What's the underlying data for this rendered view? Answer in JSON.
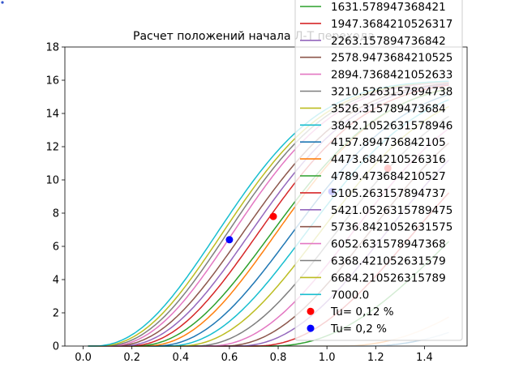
{
  "chart_data": {
    "type": "line",
    "title": "Расчет положений начала Л-Т перехода",
    "xlabel": "",
    "ylabel": "",
    "xlim": [
      -0.075,
      1.575
    ],
    "ylim": [
      0,
      18
    ],
    "xticks": [
      0.0,
      0.2,
      0.4,
      0.6,
      0.8,
      1.0,
      1.2,
      1.4
    ],
    "xtick_labels": [
      "0.0",
      "0.2",
      "0.4",
      "0.6",
      "0.8",
      "1.0",
      "1.2",
      "1.4"
    ],
    "yticks": [
      0,
      2,
      4,
      6,
      8,
      10,
      12,
      14,
      16,
      18
    ],
    "ytick_labels": [
      "0",
      "2",
      "4",
      "6",
      "8",
      "10",
      "12",
      "14",
      "16",
      "18"
    ],
    "grid": false,
    "legend_position": "top-right",
    "series": [
      {
        "name": "1631.578947368421",
        "color": "#2ca02c",
        "curve": {
          "x0": 1.02,
          "a": 1.0,
          "k": 6
        }
      },
      {
        "name": "1947.3684210526317",
        "color": "#d62728",
        "curve": {
          "x0": 0.95,
          "a": 1.0,
          "k": 7
        }
      },
      {
        "name": "2263.157894736842",
        "color": "#9467bd",
        "curve": {
          "x0": 0.88,
          "a": 1.0,
          "k": 7.5
        }
      },
      {
        "name": "2578.9473684210525",
        "color": "#8c564b",
        "curve": {
          "x0": 0.82,
          "a": 1.05,
          "k": 8
        }
      },
      {
        "name": "2894.7368421052633",
        "color": "#e377c2",
        "curve": {
          "x0": 0.76,
          "a": 1.1,
          "k": 8.5
        }
      },
      {
        "name": "3210.5263157894738",
        "color": "#7f7f7f",
        "curve": {
          "x0": 0.7,
          "a": 1.15,
          "k": 9
        }
      },
      {
        "name": "3526.315789473684",
        "color": "#bcbd22",
        "curve": {
          "x0": 0.64,
          "a": 1.2,
          "k": 9.5
        }
      },
      {
        "name": "3842.1052631578946",
        "color": "#17becf",
        "curve": {
          "x0": 0.59,
          "a": 1.25,
          "k": 10
        }
      },
      {
        "name": "4157.894736842105",
        "color": "#1f77b4",
        "curve": {
          "x0": 0.54,
          "a": 1.3,
          "k": 10.5
        }
      },
      {
        "name": "4473.684210526316",
        "color": "#ff7f0e",
        "curve": {
          "x0": 0.5,
          "a": 1.3,
          "k": 11
        }
      },
      {
        "name": "4789.473684210527",
        "color": "#2ca02c",
        "curve": {
          "x0": 0.46,
          "a": 1.35,
          "k": 11
        }
      },
      {
        "name": "5105.263157894737",
        "color": "#d62728",
        "curve": {
          "x0": 0.43,
          "a": 1.35,
          "k": 11.5
        }
      },
      {
        "name": "5421.0526315789475",
        "color": "#9467bd",
        "curve": {
          "x0": 0.4,
          "a": 1.4,
          "k": 12
        }
      },
      {
        "name": "5736.8421052631575",
        "color": "#8c564b",
        "curve": {
          "x0": 0.37,
          "a": 1.4,
          "k": 12
        }
      },
      {
        "name": "6052.631578947368",
        "color": "#e377c2",
        "curve": {
          "x0": 0.35,
          "a": 1.4,
          "k": 12.5
        }
      },
      {
        "name": "6368.421052631579",
        "color": "#7f7f7f",
        "curve": {
          "x0": 0.33,
          "a": 1.45,
          "k": 13
        }
      },
      {
        "name": "6684.210526315789",
        "color": "#bcbd22",
        "curve": {
          "x0": 0.31,
          "a": 1.45,
          "k": 13
        }
      },
      {
        "name": "7000.0",
        "color": "#17becf",
        "curve": {
          "x0": 0.29,
          "a": 1.5,
          "k": 13.5
        }
      }
    ],
    "faint_series": [
      {
        "color": "#ff7f0e",
        "curve": {
          "x0": 1.3,
          "a": 1.0,
          "k": 5
        }
      },
      {
        "color": "#1f77b4",
        "curve": {
          "x0": 1.4,
          "a": 1.0,
          "k": 4.5
        }
      }
    ],
    "markers": [
      {
        "name": "Tu= 0,12 %",
        "color": "#ff0000",
        "points": [
          [
            0.78,
            7.8
          ],
          [
            1.25,
            10.7
          ]
        ]
      },
      {
        "name": "Tu= 0,2 %",
        "color": "#0000ff",
        "points": [
          [
            0.6,
            6.4
          ],
          [
            1.02,
            9.3
          ]
        ]
      }
    ]
  }
}
